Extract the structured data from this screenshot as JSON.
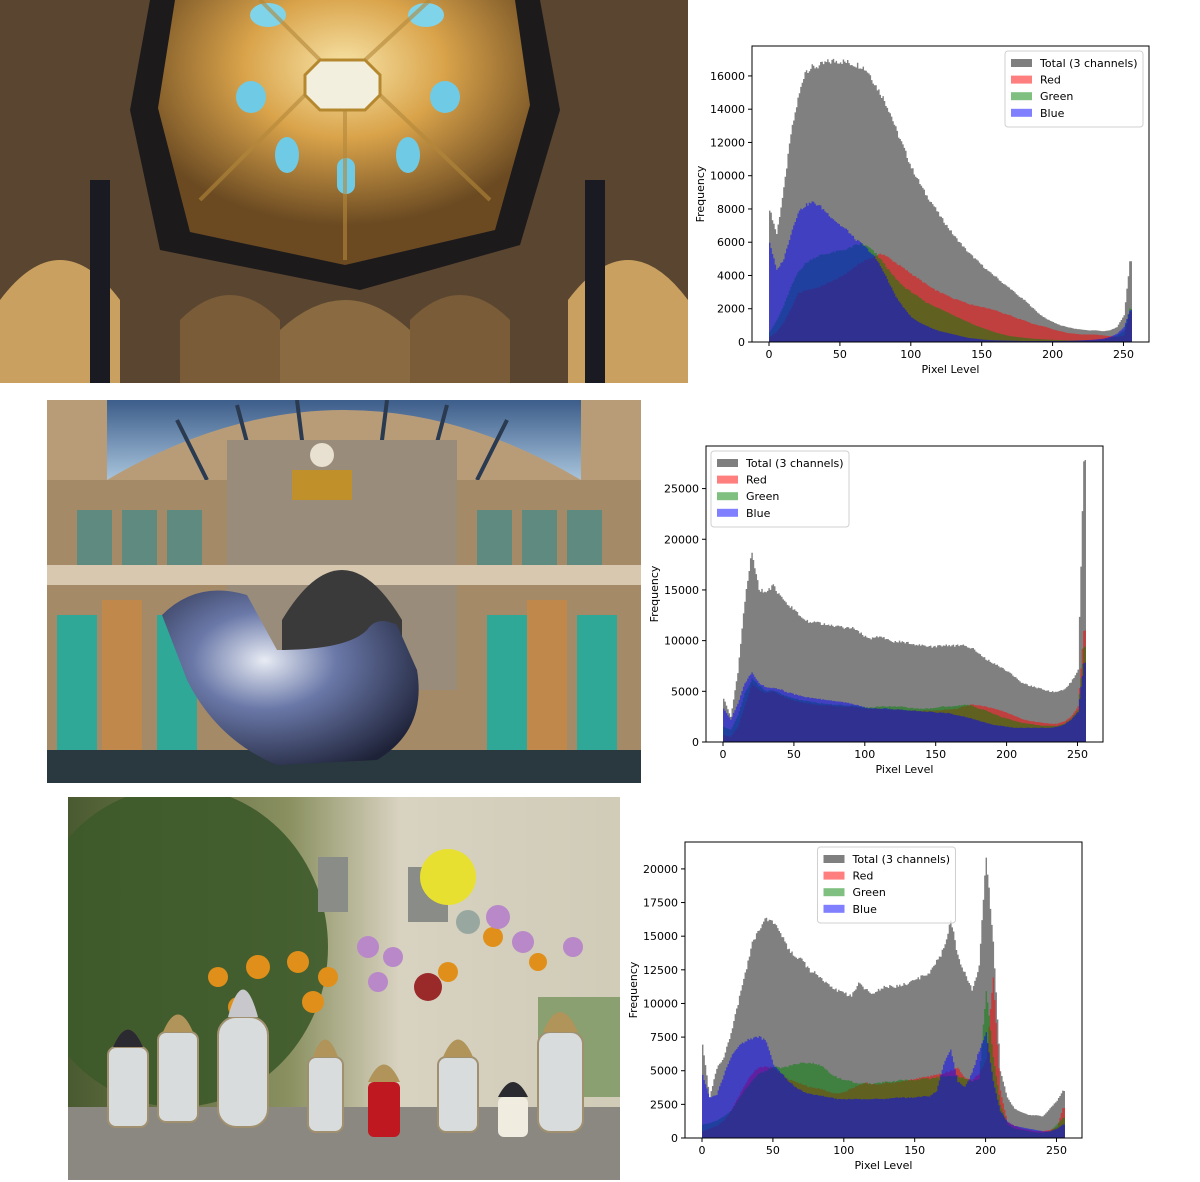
{
  "figures": [
    {
      "photo_alt": "Ornate baroque dome interior viewed from below with skylight windows",
      "chart_title": "",
      "xlabel": "Pixel Level",
      "ylabel": "Frequency"
    },
    {
      "photo_alt": "Antwerp Central Station hall facade with mirrored chrome bird-hand sculpture",
      "chart_title": "",
      "xlabel": "Pixel Level",
      "ylabel": "Frequency"
    },
    {
      "photo_alt": "Memorial candles (grave lanterns) with marigolds and chrysanthemum flowers on a stone wall",
      "chart_title": "",
      "xlabel": "Pixel Level",
      "ylabel": "Frequency"
    }
  ],
  "legend": {
    "total": "Total (3 channels)",
    "red": "Red",
    "green": "Green",
    "blue": "Blue"
  },
  "colors": {
    "total": "#808080",
    "red": "#ff0000",
    "green": "#008000",
    "blue": "#0000ff"
  },
  "chart_data": [
    {
      "type": "area",
      "title": "",
      "xlabel": "Pixel Level",
      "ylabel": "Frequency",
      "xlim": [
        -12,
        268
      ],
      "ylim": [
        0,
        17800
      ],
      "xticks": [
        0,
        50,
        100,
        150,
        200,
        250
      ],
      "yticks": [
        0,
        2000,
        4000,
        6000,
        8000,
        10000,
        12000,
        14000,
        16000
      ],
      "legend_position": "upper right",
      "grid": false,
      "x": [
        0,
        5,
        10,
        15,
        20,
        25,
        30,
        35,
        40,
        45,
        50,
        55,
        60,
        65,
        70,
        75,
        80,
        85,
        90,
        95,
        100,
        105,
        110,
        115,
        120,
        125,
        130,
        135,
        140,
        145,
        150,
        155,
        160,
        165,
        170,
        175,
        180,
        185,
        190,
        195,
        200,
        205,
        210,
        215,
        220,
        225,
        230,
        235,
        240,
        245,
        250,
        254
      ],
      "series": [
        {
          "name": "Total (3 channels)",
          "values": [
            8000,
            6500,
            9200,
            12500,
            14600,
            16300,
            16500,
            16600,
            16800,
            16900,
            16900,
            16800,
            16700,
            16600,
            16200,
            15400,
            14700,
            13800,
            12600,
            11600,
            10500,
            9700,
            8900,
            8300,
            7600,
            7000,
            6400,
            5900,
            5400,
            5000,
            4600,
            4200,
            3900,
            3500,
            3200,
            2800,
            2500,
            2100,
            1700,
            1400,
            1200,
            1000,
            900,
            800,
            750,
            700,
            700,
            650,
            700,
            900,
            1600,
            4800
          ]
        },
        {
          "name": "Red",
          "values": [
            300,
            600,
            1200,
            2000,
            2900,
            3100,
            3200,
            3300,
            3500,
            3700,
            3900,
            4200,
            4500,
            4800,
            5000,
            5200,
            5300,
            5000,
            4700,
            4400,
            4100,
            3800,
            3500,
            3200,
            3000,
            2800,
            2600,
            2500,
            2300,
            2200,
            2100,
            2000,
            1900,
            1700,
            1600,
            1400,
            1300,
            1100,
            1000,
            900,
            750,
            650,
            550,
            500,
            450,
            450,
            450,
            400,
            350,
            300,
            400,
            1800
          ]
        },
        {
          "name": "Green",
          "values": [
            600,
            1300,
            2200,
            3300,
            4200,
            4700,
            5000,
            5200,
            5300,
            5400,
            5500,
            5600,
            5800,
            5900,
            5700,
            5300,
            4800,
            4200,
            3700,
            3300,
            3000,
            2700,
            2400,
            2200,
            2000,
            1800,
            1600,
            1400,
            1200,
            1000,
            850,
            700,
            550,
            450,
            350,
            300,
            250,
            200,
            180,
            150,
            130,
            110,
            100,
            100,
            100,
            100,
            120,
            150,
            250,
            400,
            700,
            2000
          ]
        },
        {
          "name": "Blue",
          "values": [
            6000,
            4300,
            5000,
            6500,
            7800,
            8200,
            8400,
            8200,
            7800,
            7400,
            7000,
            6700,
            6200,
            5900,
            5500,
            5000,
            4300,
            3400,
            2600,
            2000,
            1500,
            1200,
            1000,
            800,
            650,
            550,
            450,
            350,
            250,
            200,
            150,
            120,
            100,
            90,
            80,
            70,
            60,
            60,
            60,
            60,
            60,
            60,
            70,
            80,
            100,
            120,
            150,
            200,
            300,
            500,
            900,
            1900
          ]
        }
      ]
    },
    {
      "type": "area",
      "title": "",
      "xlabel": "Pixel Level",
      "ylabel": "Frequency",
      "xlim": [
        -12,
        268
      ],
      "ylim": [
        0,
        29200
      ],
      "xticks": [
        0,
        50,
        100,
        150,
        200,
        250
      ],
      "yticks": [
        0,
        5000,
        10000,
        15000,
        20000,
        25000
      ],
      "legend_position": "upper left",
      "grid": false,
      "x": [
        0,
        5,
        10,
        15,
        20,
        25,
        30,
        35,
        40,
        45,
        50,
        55,
        60,
        65,
        70,
        75,
        80,
        85,
        90,
        95,
        100,
        105,
        110,
        115,
        120,
        125,
        130,
        135,
        140,
        145,
        150,
        155,
        160,
        165,
        170,
        175,
        180,
        185,
        190,
        195,
        200,
        205,
        210,
        215,
        220,
        225,
        230,
        235,
        240,
        245,
        250,
        254
      ],
      "series": [
        {
          "name": "Total (3 channels)",
          "values": [
            4300,
            2500,
            6800,
            14000,
            18900,
            15000,
            14800,
            15400,
            14300,
            13600,
            13000,
            12300,
            11900,
            11900,
            11600,
            11500,
            11400,
            11300,
            11300,
            10900,
            10400,
            10200,
            10500,
            10100,
            9900,
            9900,
            9800,
            9600,
            9500,
            9400,
            9400,
            9500,
            9500,
            9500,
            9500,
            9300,
            8700,
            8200,
            7800,
            7400,
            7000,
            6500,
            5900,
            5600,
            5400,
            5200,
            5000,
            4900,
            5200,
            5900,
            7100,
            27800
          ]
        },
        {
          "name": "Red",
          "values": [
            700,
            500,
            1500,
            3600,
            5700,
            5200,
            4800,
            5000,
            4600,
            4300,
            4100,
            3900,
            3800,
            3700,
            3600,
            3600,
            3500,
            3500,
            3500,
            3400,
            3300,
            3300,
            3300,
            3200,
            3200,
            3200,
            3100,
            3100,
            3100,
            3100,
            3100,
            3200,
            3200,
            3300,
            3500,
            3700,
            3600,
            3500,
            3300,
            3100,
            2900,
            2600,
            2300,
            2100,
            2000,
            1900,
            1800,
            1800,
            2000,
            2500,
            3500,
            11000
          ]
        },
        {
          "name": "Green",
          "values": [
            1500,
            1200,
            2600,
            4800,
            6200,
            5600,
            5000,
            5100,
            4800,
            4500,
            4300,
            4100,
            4000,
            3900,
            3800,
            3700,
            3700,
            3600,
            3600,
            3500,
            3400,
            3400,
            3500,
            3500,
            3500,
            3500,
            3400,
            3300,
            3300,
            3300,
            3400,
            3500,
            3500,
            3600,
            3700,
            3600,
            3300,
            3100,
            2800,
            2500,
            2300,
            2100,
            1900,
            1800,
            1700,
            1600,
            1600,
            1600,
            1800,
            2300,
            3200,
            9300
          ]
        },
        {
          "name": "Blue",
          "values": [
            3300,
            2200,
            3800,
            5800,
            6900,
            5800,
            5400,
            5300,
            5200,
            4900,
            4700,
            4500,
            4400,
            4300,
            4200,
            4100,
            4000,
            3900,
            3800,
            3600,
            3400,
            3300,
            3300,
            3300,
            3200,
            3200,
            3100,
            3100,
            3000,
            3000,
            2900,
            2900,
            2800,
            2600,
            2500,
            2300,
            2100,
            1900,
            1700,
            1600,
            1500,
            1400,
            1400,
            1400,
            1400,
            1400,
            1400,
            1500,
            1700,
            2200,
            3000,
            7800
          ]
        }
      ]
    },
    {
      "type": "area",
      "title": "",
      "xlabel": "Pixel Level",
      "ylabel": "Frequency",
      "xlim": [
        -12,
        268
      ],
      "ylim": [
        0,
        22000
      ],
      "xticks": [
        0,
        50,
        100,
        150,
        200,
        250
      ],
      "yticks": [
        0,
        2500,
        5000,
        7500,
        10000,
        12500,
        15000,
        17500,
        20000
      ],
      "legend_position": "upper center",
      "grid": false,
      "x": [
        0,
        5,
        10,
        15,
        20,
        25,
        30,
        35,
        40,
        45,
        50,
        55,
        60,
        65,
        70,
        75,
        80,
        85,
        90,
        95,
        100,
        105,
        110,
        115,
        120,
        125,
        130,
        135,
        140,
        145,
        150,
        155,
        160,
        165,
        170,
        175,
        180,
        185,
        190,
        195,
        200,
        205,
        210,
        215,
        220,
        225,
        230,
        235,
        240,
        245,
        250,
        254
      ],
      "series": [
        {
          "name": "Total (3 channels)",
          "values": [
            7000,
            3000,
            5200,
            6000,
            7800,
            10000,
            12200,
            14500,
            15600,
            16300,
            16000,
            15200,
            14200,
            13500,
            13300,
            12500,
            12200,
            11700,
            11300,
            11000,
            10700,
            10600,
            11500,
            11000,
            10800,
            11000,
            11300,
            11200,
            11300,
            11500,
            11800,
            12000,
            12300,
            13100,
            14000,
            16200,
            13600,
            12200,
            11000,
            12700,
            21000,
            14700,
            5000,
            3000,
            2200,
            1900,
            1700,
            1700,
            1600,
            2200,
            2800,
            3500
          ]
        },
        {
          "name": "Red",
          "values": [
            500,
            700,
            900,
            1300,
            2000,
            3000,
            4000,
            4800,
            5300,
            5300,
            5200,
            4800,
            4400,
            4200,
            4000,
            3800,
            3700,
            3600,
            3400,
            3300,
            3400,
            3700,
            3900,
            4100,
            4000,
            4000,
            4100,
            4100,
            4200,
            4300,
            4400,
            4500,
            4600,
            4700,
            4800,
            5000,
            5200,
            4500,
            4300,
            4800,
            5800,
            12000,
            3500,
            1200,
            900,
            700,
            600,
            500,
            500,
            600,
            800,
            2200
          ]
        },
        {
          "name": "Green",
          "values": [
            1000,
            1100,
            1300,
            1600,
            2000,
            2800,
            3600,
            4200,
            4800,
            5000,
            5300,
            5200,
            5300,
            5500,
            5600,
            5600,
            5500,
            5300,
            4800,
            4500,
            4300,
            4200,
            4000,
            4100,
            4000,
            4100,
            4200,
            4200,
            4300,
            4300,
            4300,
            4400,
            4400,
            4500,
            4600,
            4600,
            4600,
            4400,
            4200,
            4400,
            11000,
            6000,
            2500,
            1000,
            700,
            600,
            500,
            400,
            400,
            500,
            1000,
            1500
          ]
        },
        {
          "name": "Blue",
          "values": [
            4700,
            3000,
            3200,
            4700,
            6000,
            6800,
            7200,
            7400,
            7500,
            7200,
            5400,
            4900,
            4300,
            3800,
            3500,
            3300,
            3200,
            3100,
            3000,
            2900,
            2900,
            2900,
            2900,
            2900,
            2900,
            2900,
            2900,
            3000,
            3000,
            3000,
            3000,
            3100,
            3100,
            3500,
            5500,
            6500,
            4200,
            3800,
            4800,
            6500,
            7800,
            4200,
            2000,
            1200,
            900,
            800,
            700,
            600,
            500,
            500,
            700,
            1000
          ]
        }
      ]
    }
  ]
}
